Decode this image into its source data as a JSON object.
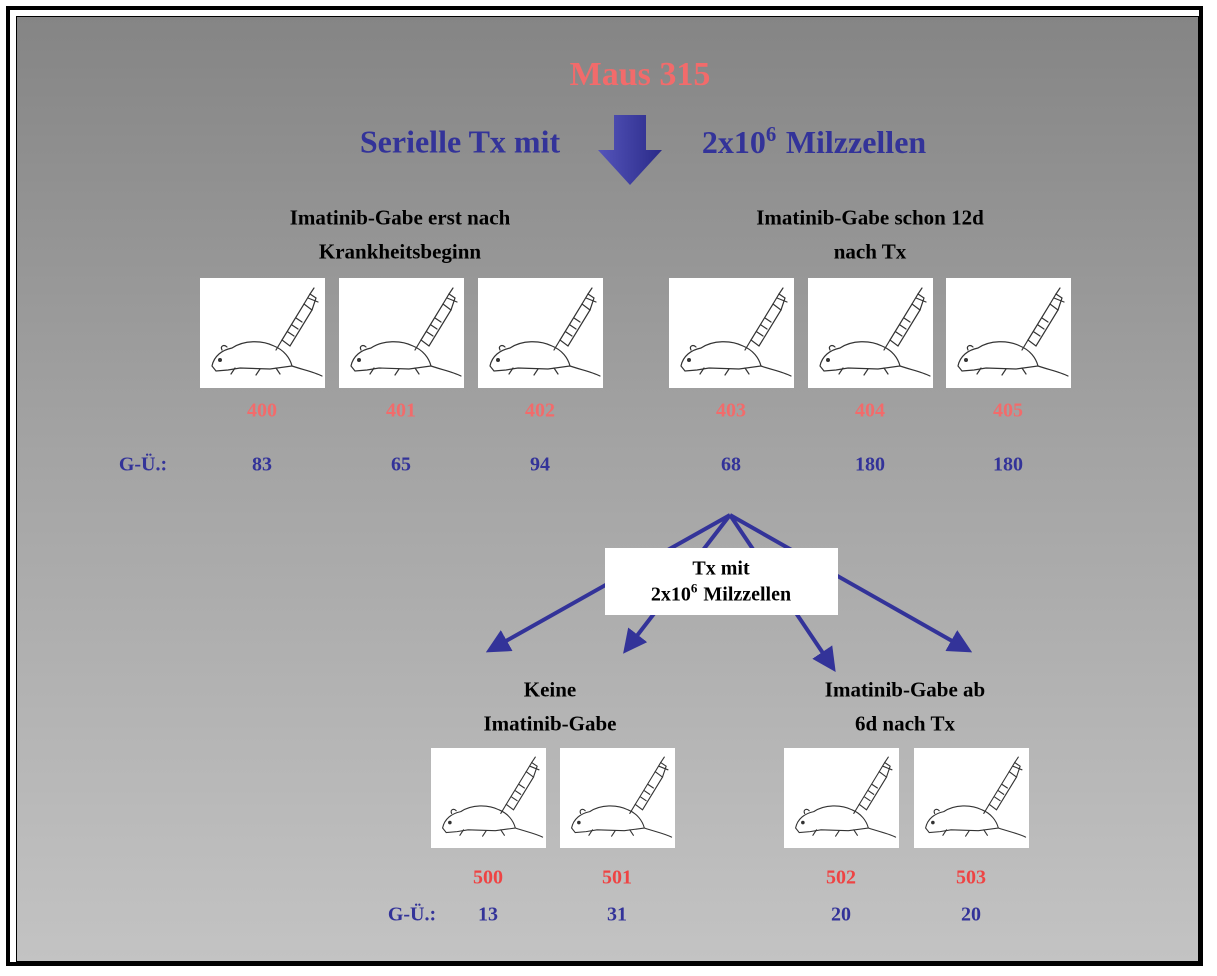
{
  "title": "Maus 315",
  "transplant": {
    "label": "Serielle Tx mit",
    "base": "2x10",
    "exponent": "6",
    "unit": "Milzzellen"
  },
  "generation1": {
    "survival_label": "G-Ü.:",
    "groups": [
      {
        "heading": [
          "Imatinib-Gabe erst nach",
          "Krankheitsbeginn"
        ],
        "mice": [
          {
            "id": 400,
            "survival": 83
          },
          {
            "id": 401,
            "survival": 65
          },
          {
            "id": 402,
            "survival": 94
          }
        ]
      },
      {
        "heading": [
          "Imatinib-Gabe schon 12d",
          "nach Tx"
        ],
        "mice": [
          {
            "id": 403,
            "survival": 68
          },
          {
            "id": 404,
            "survival": 180
          },
          {
            "id": 405,
            "survival": 180
          }
        ]
      }
    ]
  },
  "transfer_box": {
    "label": "Tx  mit",
    "base": "2x10",
    "exponent": "6",
    "unit": "Milzzellen"
  },
  "generation2": {
    "survival_label": "G-Ü.:",
    "groups": [
      {
        "heading": [
          "Keine",
          "Imatinib-Gabe"
        ],
        "mice": [
          {
            "id": 500,
            "survival": 13
          },
          {
            "id": 501,
            "survival": 31
          }
        ]
      },
      {
        "heading": [
          "Imatinib-Gabe ab",
          "6d nach Tx"
        ],
        "mice": [
          {
            "id": 502,
            "survival": 20
          },
          {
            "id": 503,
            "survival": 20
          }
        ]
      }
    ]
  }
}
